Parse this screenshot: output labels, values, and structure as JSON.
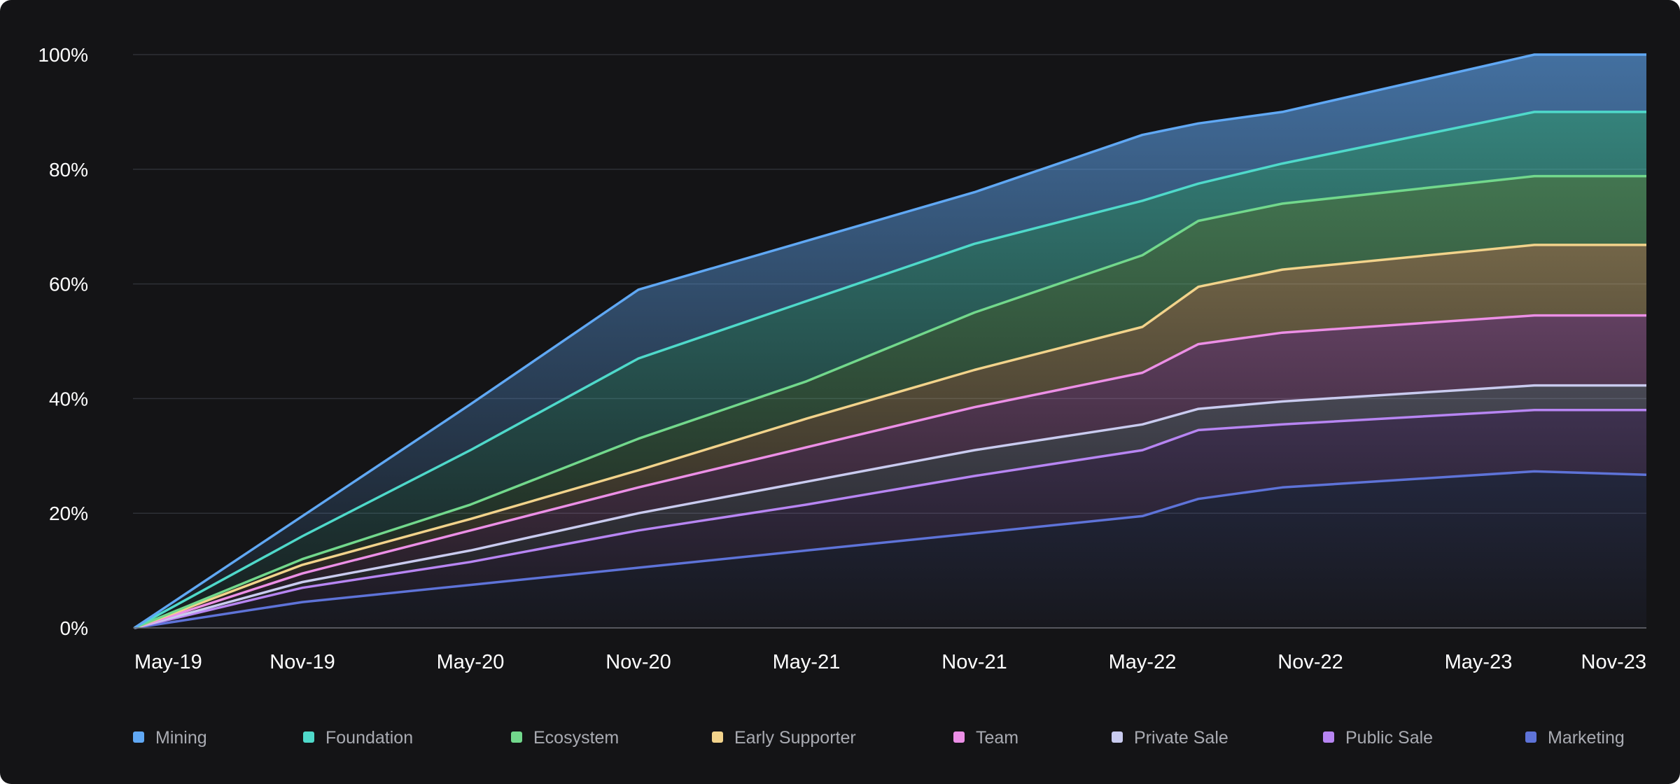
{
  "chart_data": {
    "type": "area",
    "stacked": true,
    "title": "",
    "xlabel": "",
    "ylabel": "",
    "ylim": [
      0,
      100
    ],
    "y_ticks": [
      "0%",
      "20%",
      "40%",
      "60%",
      "80%",
      "100%"
    ],
    "x_ticks": [
      "May-19",
      "Nov-19",
      "May-20",
      "Nov-20",
      "May-21",
      "Nov-21",
      "May-22",
      "Nov-22",
      "May-23",
      "Nov-23"
    ],
    "grid": true,
    "legend_position": "bottom",
    "series": [
      {
        "name": "Marketing",
        "color": "#5e73d8",
        "points": [
          [
            "May-19",
            0
          ],
          [
            "Nov-19",
            4.5
          ],
          [
            "May-20",
            7.5
          ],
          [
            "Nov-20",
            10.5
          ],
          [
            "May-21",
            13.5
          ],
          [
            "Nov-21",
            16.5
          ],
          [
            "May-22",
            19.5
          ],
          [
            "Jul-22",
            22.5
          ],
          [
            "Oct-22",
            24.5
          ],
          [
            "Jul-23",
            27.3
          ],
          [
            "Nov-23",
            26.7
          ]
        ]
      },
      {
        "name": "Public Sale",
        "color": "#b785f2",
        "points": [
          [
            "May-19",
            0
          ],
          [
            "Nov-19",
            7
          ],
          [
            "May-20",
            11.5
          ],
          [
            "Nov-20",
            17
          ],
          [
            "May-21",
            21.5
          ],
          [
            "Nov-21",
            26.5
          ],
          [
            "May-22",
            31
          ],
          [
            "Jul-22",
            34.5
          ],
          [
            "Oct-22",
            35.5
          ],
          [
            "Jul-23",
            38
          ],
          [
            "Nov-23",
            38
          ]
        ]
      },
      {
        "name": "Private Sale",
        "color": "#c9cbef",
        "points": [
          [
            "May-19",
            0
          ],
          [
            "Nov-19",
            8
          ],
          [
            "May-20",
            13.5
          ],
          [
            "Nov-20",
            20
          ],
          [
            "May-21",
            25.5
          ],
          [
            "Nov-21",
            31
          ],
          [
            "May-22",
            35.5
          ],
          [
            "Jul-22",
            38.2
          ],
          [
            "Oct-22",
            39.5
          ],
          [
            "Jul-23",
            42.3
          ],
          [
            "Nov-23",
            42.3
          ]
        ]
      },
      {
        "name": "Team",
        "color": "#ec8fe6",
        "points": [
          [
            "May-19",
            0
          ],
          [
            "Nov-19",
            9.5
          ],
          [
            "May-20",
            17
          ],
          [
            "Nov-20",
            24.5
          ],
          [
            "May-21",
            31.5
          ],
          [
            "Nov-21",
            38.5
          ],
          [
            "May-22",
            44.5
          ],
          [
            "Jul-22",
            49.5
          ],
          [
            "Oct-22",
            51.5
          ],
          [
            "Jul-23",
            54.5
          ],
          [
            "Nov-23",
            54.5
          ]
        ]
      },
      {
        "name": "Early Supporter",
        "color": "#f2d38b",
        "points": [
          [
            "May-19",
            0
          ],
          [
            "Nov-19",
            11
          ],
          [
            "May-20",
            19
          ],
          [
            "Nov-20",
            27.5
          ],
          [
            "May-21",
            36.5
          ],
          [
            "Nov-21",
            45
          ],
          [
            "May-22",
            52.5
          ],
          [
            "Jul-22",
            59.5
          ],
          [
            "Oct-22",
            62.5
          ],
          [
            "Jul-23",
            66.8
          ],
          [
            "Nov-23",
            66.8
          ]
        ]
      },
      {
        "name": "Ecosystem",
        "color": "#72d88c",
        "points": [
          [
            "May-19",
            0
          ],
          [
            "Nov-19",
            12
          ],
          [
            "May-20",
            21.5
          ],
          [
            "Nov-20",
            33
          ],
          [
            "May-21",
            43
          ],
          [
            "Nov-21",
            55
          ],
          [
            "May-22",
            65
          ],
          [
            "Jul-22",
            71
          ],
          [
            "Oct-22",
            74
          ],
          [
            "Jul-23",
            78.8
          ],
          [
            "Nov-23",
            78.8
          ]
        ]
      },
      {
        "name": "Foundation",
        "color": "#4fd9ca",
        "points": [
          [
            "May-19",
            0
          ],
          [
            "Nov-19",
            16
          ],
          [
            "May-20",
            31
          ],
          [
            "Nov-20",
            47
          ],
          [
            "May-21",
            57
          ],
          [
            "Nov-21",
            67
          ],
          [
            "May-22",
            74.5
          ],
          [
            "Jul-22",
            77.5
          ],
          [
            "Oct-22",
            81
          ],
          [
            "Jul-23",
            90
          ],
          [
            "Nov-23",
            90
          ]
        ]
      },
      {
        "name": "Mining",
        "color": "#60a8f4",
        "points": [
          [
            "May-19",
            0
          ],
          [
            "Nov-19",
            19.5
          ],
          [
            "May-20",
            39
          ],
          [
            "Nov-20",
            59
          ],
          [
            "May-21",
            67.5
          ],
          [
            "Nov-21",
            76
          ],
          [
            "May-22",
            86
          ],
          [
            "Jul-22",
            88
          ],
          [
            "Oct-22",
            90
          ],
          [
            "Jul-23",
            100
          ],
          [
            "Nov-23",
            100
          ]
        ]
      }
    ],
    "legend": [
      "Mining",
      "Foundation",
      "Ecosystem",
      "Early Supporter",
      "Team",
      "Private Sale",
      "Public Sale",
      "Marketing"
    ]
  }
}
